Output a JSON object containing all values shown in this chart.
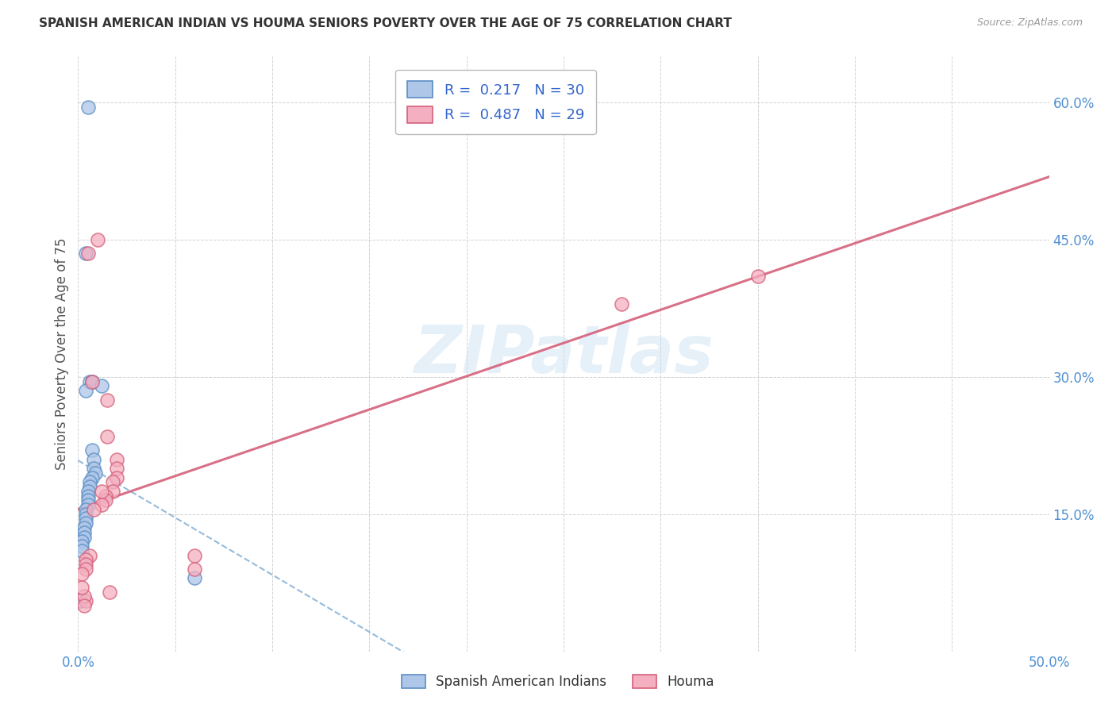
{
  "title": "SPANISH AMERICAN INDIAN VS HOUMA SENIORS POVERTY OVER THE AGE OF 75 CORRELATION CHART",
  "source": "Source: ZipAtlas.com",
  "ylabel": "Seniors Poverty Over the Age of 75",
  "xlim": [
    0.0,
    0.5
  ],
  "ylim": [
    0.0,
    0.65
  ],
  "xticks": [
    0.0,
    0.05,
    0.1,
    0.15,
    0.2,
    0.25,
    0.3,
    0.35,
    0.4,
    0.45,
    0.5
  ],
  "yticks": [
    0.0,
    0.15,
    0.3,
    0.45,
    0.6
  ],
  "blue_R": 0.217,
  "blue_N": 30,
  "pink_R": 0.487,
  "pink_N": 29,
  "blue_color": "#aec6e8",
  "pink_color": "#f4afc0",
  "blue_edge_color": "#5b8ec4",
  "pink_edge_color": "#d4607a",
  "blue_line_color": "#7aaad4",
  "pink_line_color": "#d4607a",
  "watermark_text": "ZIPatlas",
  "blue_scatter_x": [
    0.005,
    0.004,
    0.006,
    0.007,
    0.007,
    0.007,
    0.008,
    0.008,
    0.009,
    0.007,
    0.006,
    0.006,
    0.005,
    0.005,
    0.005,
    0.005,
    0.004,
    0.004,
    0.004,
    0.004,
    0.003,
    0.003,
    0.003,
    0.002,
    0.002,
    0.002,
    0.001,
    0.004,
    0.012,
    0.06
  ],
  "blue_scatter_y": [
    0.595,
    0.435,
    0.295,
    0.295,
    0.295,
    0.22,
    0.21,
    0.2,
    0.195,
    0.19,
    0.185,
    0.18,
    0.175,
    0.17,
    0.165,
    0.16,
    0.155,
    0.15,
    0.145,
    0.14,
    0.135,
    0.13,
    0.125,
    0.12,
    0.115,
    0.11,
    0.055,
    0.285,
    0.29,
    0.08
  ],
  "pink_scatter_x": [
    0.005,
    0.007,
    0.01,
    0.015,
    0.015,
    0.02,
    0.02,
    0.02,
    0.018,
    0.018,
    0.014,
    0.014,
    0.012,
    0.012,
    0.008,
    0.006,
    0.004,
    0.004,
    0.004,
    0.004,
    0.003,
    0.003,
    0.002,
    0.002,
    0.28,
    0.35,
    0.06,
    0.06,
    0.016
  ],
  "pink_scatter_y": [
    0.435,
    0.295,
    0.45,
    0.275,
    0.235,
    0.21,
    0.2,
    0.19,
    0.185,
    0.175,
    0.17,
    0.165,
    0.175,
    0.16,
    0.155,
    0.105,
    0.1,
    0.095,
    0.09,
    0.055,
    0.06,
    0.05,
    0.085,
    0.07,
    0.38,
    0.41,
    0.105,
    0.09,
    0.065
  ]
}
